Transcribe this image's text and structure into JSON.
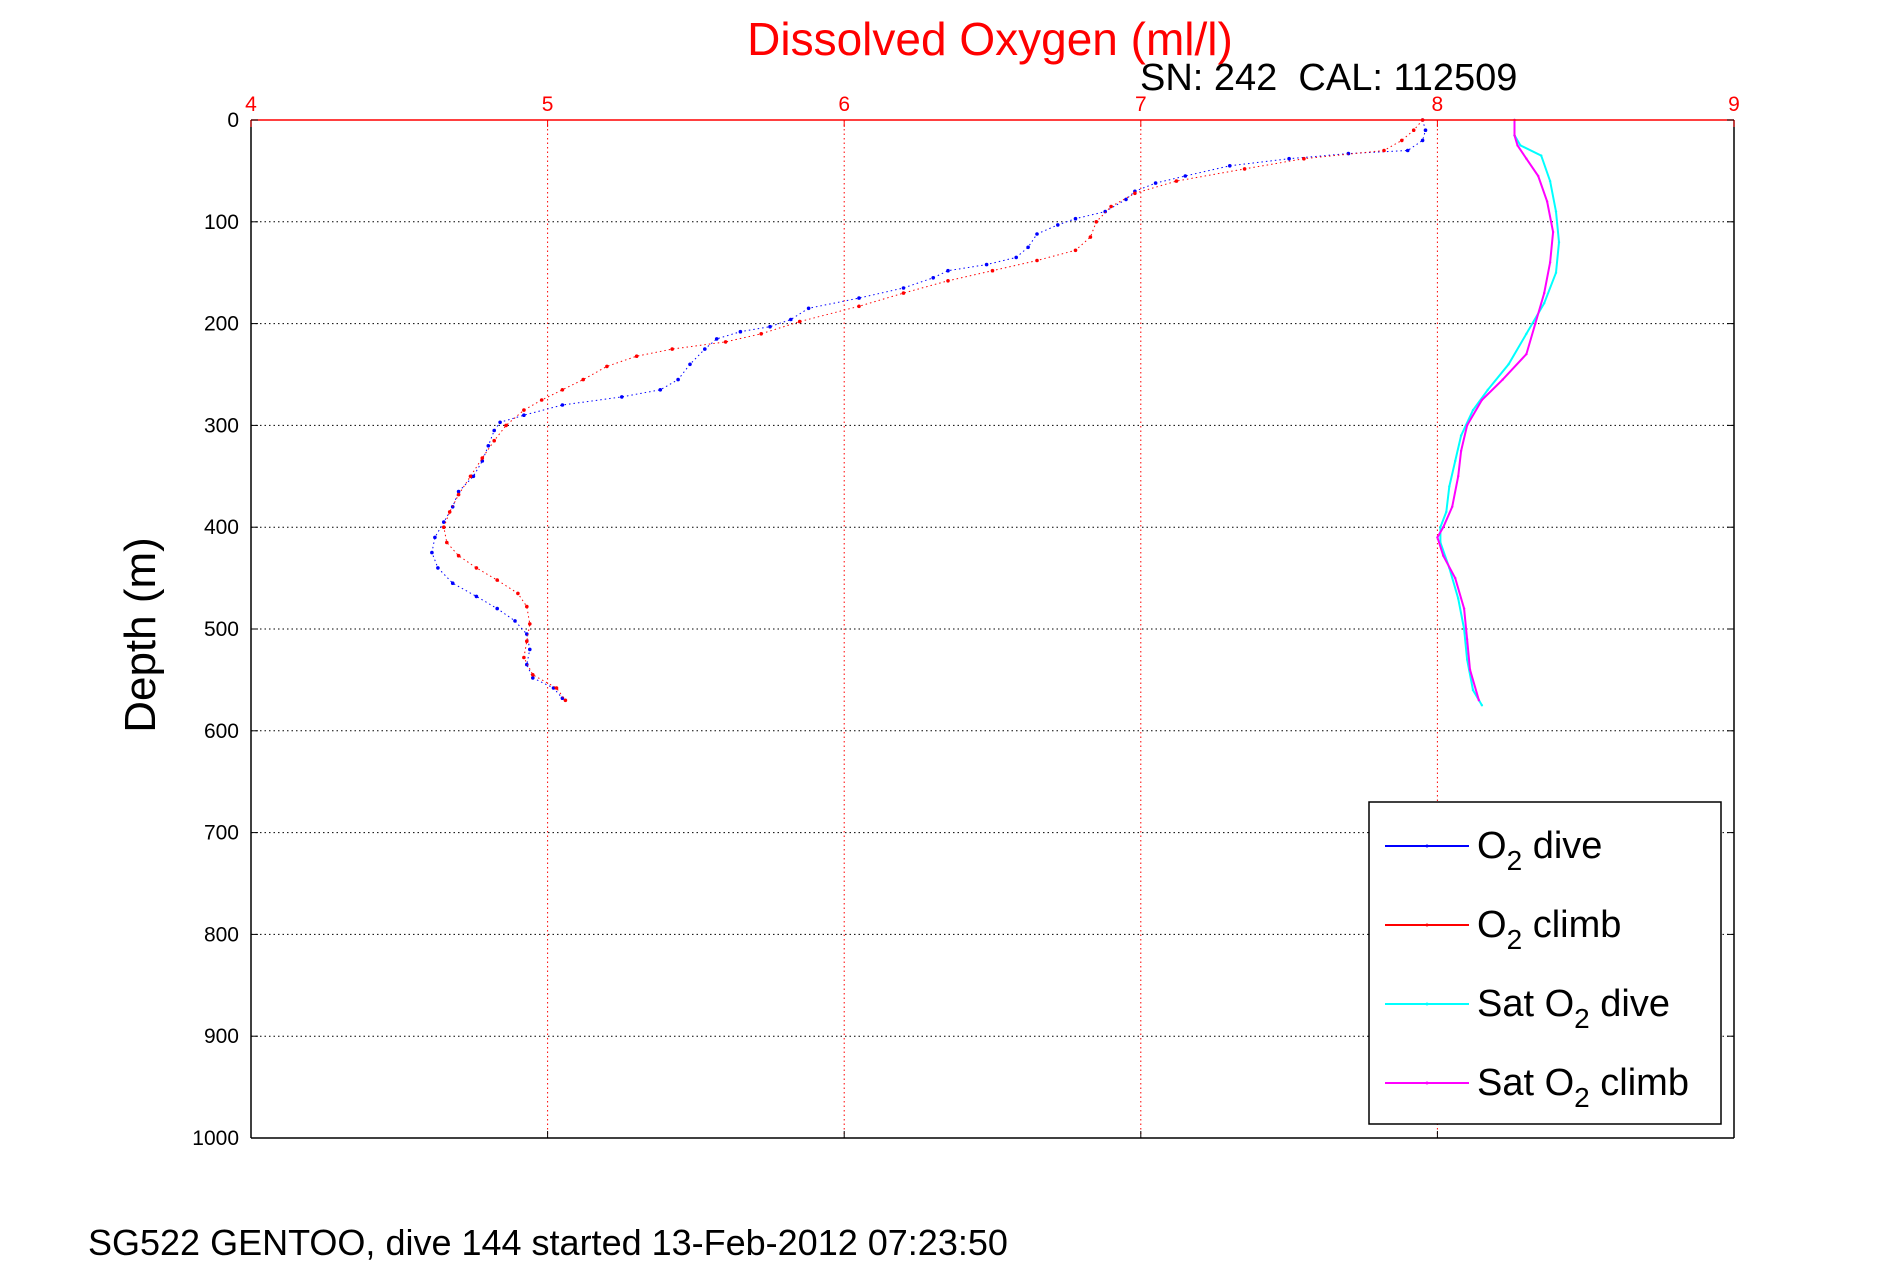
{
  "chart_data": {
    "type": "scatter",
    "title": "Dissolved Oxygen (ml/l)",
    "subtitle": "SN: 242  CAL: 112509",
    "xlabel": "",
    "ylabel": "Depth (m)",
    "xlim": [
      4,
      9
    ],
    "ylim": [
      0,
      1000
    ],
    "y_reversed": true,
    "x_axis_position": "top",
    "x_ticks": [
      "4",
      "5",
      "6",
      "7",
      "8",
      "9"
    ],
    "y_ticks": [
      "0",
      "100",
      "200",
      "300",
      "400",
      "500",
      "600",
      "700",
      "800",
      "900",
      "1000"
    ],
    "grid": true,
    "legend_position": "lower-right",
    "series": [
      {
        "name": "O2 dive",
        "color": "#0000ff",
        "points": [
          [
            7.95,
            0
          ],
          [
            7.96,
            10
          ],
          [
            7.95,
            20
          ],
          [
            7.9,
            30
          ],
          [
            7.7,
            33
          ],
          [
            7.5,
            38
          ],
          [
            7.3,
            45
          ],
          [
            7.15,
            55
          ],
          [
            7.05,
            62
          ],
          [
            6.98,
            70
          ],
          [
            6.95,
            78
          ],
          [
            6.88,
            90
          ],
          [
            6.78,
            97
          ],
          [
            6.72,
            103
          ],
          [
            6.65,
            112
          ],
          [
            6.62,
            125
          ],
          [
            6.58,
            135
          ],
          [
            6.48,
            142
          ],
          [
            6.35,
            148
          ],
          [
            6.3,
            155
          ],
          [
            6.2,
            165
          ],
          [
            6.05,
            175
          ],
          [
            5.88,
            185
          ],
          [
            5.82,
            196
          ],
          [
            5.75,
            203
          ],
          [
            5.65,
            208
          ],
          [
            5.57,
            215
          ],
          [
            5.53,
            225
          ],
          [
            5.48,
            240
          ],
          [
            5.44,
            255
          ],
          [
            5.38,
            265
          ],
          [
            5.25,
            272
          ],
          [
            5.05,
            280
          ],
          [
            4.92,
            290
          ],
          [
            4.84,
            297
          ],
          [
            4.82,
            305
          ],
          [
            4.8,
            320
          ],
          [
            4.78,
            335
          ],
          [
            4.75,
            350
          ],
          [
            4.7,
            365
          ],
          [
            4.68,
            380
          ],
          [
            4.65,
            395
          ],
          [
            4.62,
            410
          ],
          [
            4.61,
            425
          ],
          [
            4.63,
            440
          ],
          [
            4.68,
            455
          ],
          [
            4.76,
            468
          ],
          [
            4.83,
            480
          ],
          [
            4.89,
            492
          ],
          [
            4.93,
            505
          ],
          [
            4.94,
            520
          ],
          [
            4.93,
            535
          ],
          [
            4.95,
            548
          ],
          [
            5.02,
            558
          ],
          [
            5.05,
            568
          ]
        ]
      },
      {
        "name": "O2 climb",
        "color": "#ff0000",
        "points": [
          [
            7.95,
            0
          ],
          [
            7.92,
            10
          ],
          [
            7.88,
            20
          ],
          [
            7.82,
            30
          ],
          [
            7.55,
            38
          ],
          [
            7.35,
            48
          ],
          [
            7.12,
            60
          ],
          [
            6.98,
            72
          ],
          [
            6.9,
            85
          ],
          [
            6.85,
            100
          ],
          [
            6.83,
            115
          ],
          [
            6.78,
            128
          ],
          [
            6.65,
            138
          ],
          [
            6.5,
            148
          ],
          [
            6.35,
            158
          ],
          [
            6.2,
            170
          ],
          [
            6.05,
            183
          ],
          [
            5.85,
            198
          ],
          [
            5.72,
            210
          ],
          [
            5.6,
            218
          ],
          [
            5.42,
            225
          ],
          [
            5.3,
            232
          ],
          [
            5.2,
            242
          ],
          [
            5.12,
            255
          ],
          [
            5.05,
            265
          ],
          [
            4.98,
            275
          ],
          [
            4.92,
            285
          ],
          [
            4.86,
            300
          ],
          [
            4.82,
            315
          ],
          [
            4.78,
            332
          ],
          [
            4.74,
            350
          ],
          [
            4.7,
            368
          ],
          [
            4.67,
            385
          ],
          [
            4.65,
            400
          ],
          [
            4.66,
            415
          ],
          [
            4.7,
            428
          ],
          [
            4.76,
            440
          ],
          [
            4.83,
            452
          ],
          [
            4.9,
            465
          ],
          [
            4.93,
            478
          ],
          [
            4.94,
            495
          ],
          [
            4.93,
            512
          ],
          [
            4.92,
            528
          ],
          [
            4.95,
            545
          ],
          [
            5.03,
            558
          ],
          [
            5.06,
            570
          ]
        ]
      },
      {
        "name": "Sat O2 dive",
        "color": "#00ffff",
        "points": [
          [
            8.26,
            0
          ],
          [
            8.26,
            15
          ],
          [
            8.28,
            25
          ],
          [
            8.35,
            35
          ],
          [
            8.38,
            60
          ],
          [
            8.4,
            90
          ],
          [
            8.41,
            120
          ],
          [
            8.4,
            150
          ],
          [
            8.36,
            180
          ],
          [
            8.3,
            210
          ],
          [
            8.24,
            240
          ],
          [
            8.17,
            265
          ],
          [
            8.12,
            285
          ],
          [
            8.08,
            310
          ],
          [
            8.06,
            335
          ],
          [
            8.04,
            360
          ],
          [
            8.03,
            385
          ],
          [
            8.01,
            400
          ],
          [
            8.01,
            415
          ],
          [
            8.04,
            440
          ],
          [
            8.07,
            470
          ],
          [
            8.09,
            500
          ],
          [
            8.1,
            530
          ],
          [
            8.12,
            560
          ],
          [
            8.15,
            575
          ]
        ]
      },
      {
        "name": "Sat O2 climb",
        "color": "#ff00ff",
        "points": [
          [
            8.26,
            0
          ],
          [
            8.26,
            15
          ],
          [
            8.27,
            25
          ],
          [
            8.3,
            38
          ],
          [
            8.34,
            55
          ],
          [
            8.37,
            80
          ],
          [
            8.39,
            110
          ],
          [
            8.38,
            140
          ],
          [
            8.36,
            170
          ],
          [
            8.33,
            200
          ],
          [
            8.3,
            230
          ],
          [
            8.22,
            255
          ],
          [
            8.15,
            275
          ],
          [
            8.1,
            300
          ],
          [
            8.08,
            325
          ],
          [
            8.07,
            350
          ],
          [
            8.05,
            380
          ],
          [
            8.02,
            400
          ],
          [
            8.0,
            410
          ],
          [
            8.02,
            428
          ],
          [
            8.06,
            450
          ],
          [
            8.09,
            480
          ],
          [
            8.1,
            510
          ],
          [
            8.11,
            540
          ],
          [
            8.14,
            570
          ]
        ]
      }
    ],
    "legend_entries": [
      {
        "base": "O",
        "sub": "2",
        "rest": " dive",
        "color": "#0000ff"
      },
      {
        "base": "O",
        "sub": "2",
        "rest": " climb",
        "color": "#ff0000"
      },
      {
        "base": "Sat O",
        "sub": "2",
        "rest": " dive",
        "color": "#00ffff"
      },
      {
        "base": "Sat O",
        "sub": "2",
        "rest": " climb",
        "color": "#ff00ff"
      }
    ]
  },
  "footer": "SG522 GENTOO, dive 144 started 13-Feb-2012 07:23:50"
}
